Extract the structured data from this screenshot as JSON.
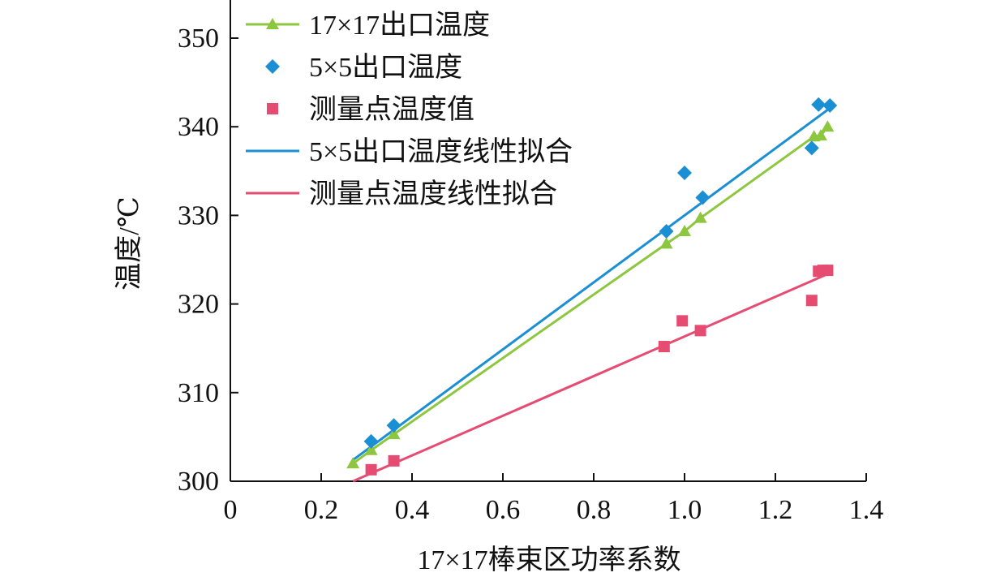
{
  "chart_data": {
    "type": "scatter",
    "title": "",
    "xlabel": "17×17棒束区功率系数",
    "ylabel": "温度/℃",
    "xlim": [
      0,
      1.4
    ],
    "ylim": [
      300,
      355
    ],
    "xticks": [
      0,
      0.2,
      0.4,
      0.6,
      0.8,
      1.0,
      1.2,
      1.4
    ],
    "xtick_labels": [
      "0",
      "0.2",
      "0.4",
      "0.6",
      "0.8",
      "1.0",
      "1.2",
      "1.4"
    ],
    "yticks": [
      300,
      310,
      320,
      330,
      340,
      350
    ],
    "ytick_labels": [
      "300",
      "310",
      "320",
      "330",
      "340",
      "350"
    ],
    "grid": false,
    "legend_position": "top-left",
    "series": [
      {
        "name": "17×17出口温度",
        "kind": "line-marker",
        "marker": "triangle",
        "color": "#8dc63f",
        "x": [
          0.27,
          0.31,
          0.36,
          0.96,
          1.0,
          1.035,
          1.285,
          1.3,
          1.315
        ],
        "y": [
          302.0,
          303.5,
          305.3,
          326.8,
          328.2,
          329.7,
          338.9,
          339.0,
          340.0
        ]
      },
      {
        "name": "5×5出口温度",
        "kind": "scatter",
        "marker": "diamond",
        "color": "#1b8fd3",
        "x": [
          0.31,
          0.36,
          0.96,
          1.0,
          1.04,
          1.28,
          1.295,
          1.32
        ],
        "y": [
          304.5,
          306.3,
          328.2,
          334.8,
          332.0,
          337.6,
          342.5,
          342.4
        ]
      },
      {
        "name": "测量点温度值",
        "kind": "scatter",
        "marker": "square",
        "color": "#e64c72",
        "x": [
          0.31,
          0.36,
          0.955,
          0.995,
          1.035,
          1.28,
          1.295,
          1.305,
          1.315
        ],
        "y": [
          301.3,
          302.3,
          315.2,
          318.1,
          317.0,
          320.4,
          323.7,
          323.8,
          323.8
        ]
      },
      {
        "name": "5×5出口温度线性拟合",
        "kind": "line",
        "color": "#1b8fd3",
        "x": [
          0.27,
          1.32
        ],
        "y": [
          302.4,
          342.1
        ]
      },
      {
        "name": "测量点温度线性拟合",
        "kind": "line",
        "color": "#e64c72",
        "x": [
          0.27,
          1.32
        ],
        "y": [
          300.0,
          323.5
        ]
      }
    ]
  }
}
